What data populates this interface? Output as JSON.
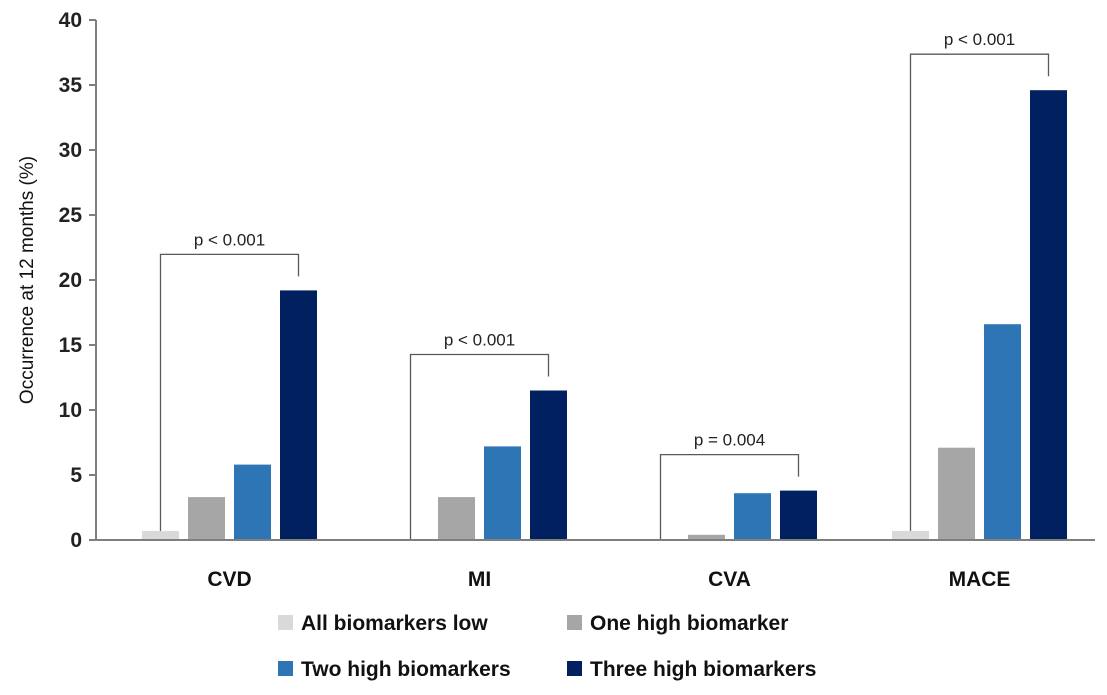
{
  "chart_data": {
    "type": "bar",
    "title": "",
    "xlabel": "",
    "ylabel": "Occurrence at 12 months (%)",
    "ylim": [
      0,
      40
    ],
    "yticks": [
      "0",
      "5",
      "10",
      "15",
      "20",
      "25",
      "30",
      "35",
      "40"
    ],
    "categories": [
      "CVD",
      "MI",
      "CVA",
      "MACE"
    ],
    "series": [
      {
        "name": "All biomarkers low",
        "color": "#d9d9d9",
        "values": [
          0.7,
          0,
          0,
          0.7
        ]
      },
      {
        "name": "One high biomarker",
        "color": "#a6a6a6",
        "values": [
          3.3,
          3.3,
          0.4,
          7.1
        ]
      },
      {
        "name": "Two high biomarkers",
        "color": "#2e75b6",
        "values": [
          5.8,
          7.2,
          3.6,
          16.6
        ]
      },
      {
        "name": "Three high biomarkers",
        "color": "#002060",
        "values": [
          19.2,
          11.5,
          3.8,
          34.6
        ]
      }
    ],
    "annotations": [
      {
        "category": "CVD",
        "text": "p < 0.001"
      },
      {
        "category": "MI",
        "text": "p < 0.001"
      },
      {
        "category": "CVA",
        "text": "p = 0.004"
      },
      {
        "category": "MACE",
        "text": "p < 0.001"
      }
    ],
    "grid": false,
    "legend_position": "bottom"
  }
}
